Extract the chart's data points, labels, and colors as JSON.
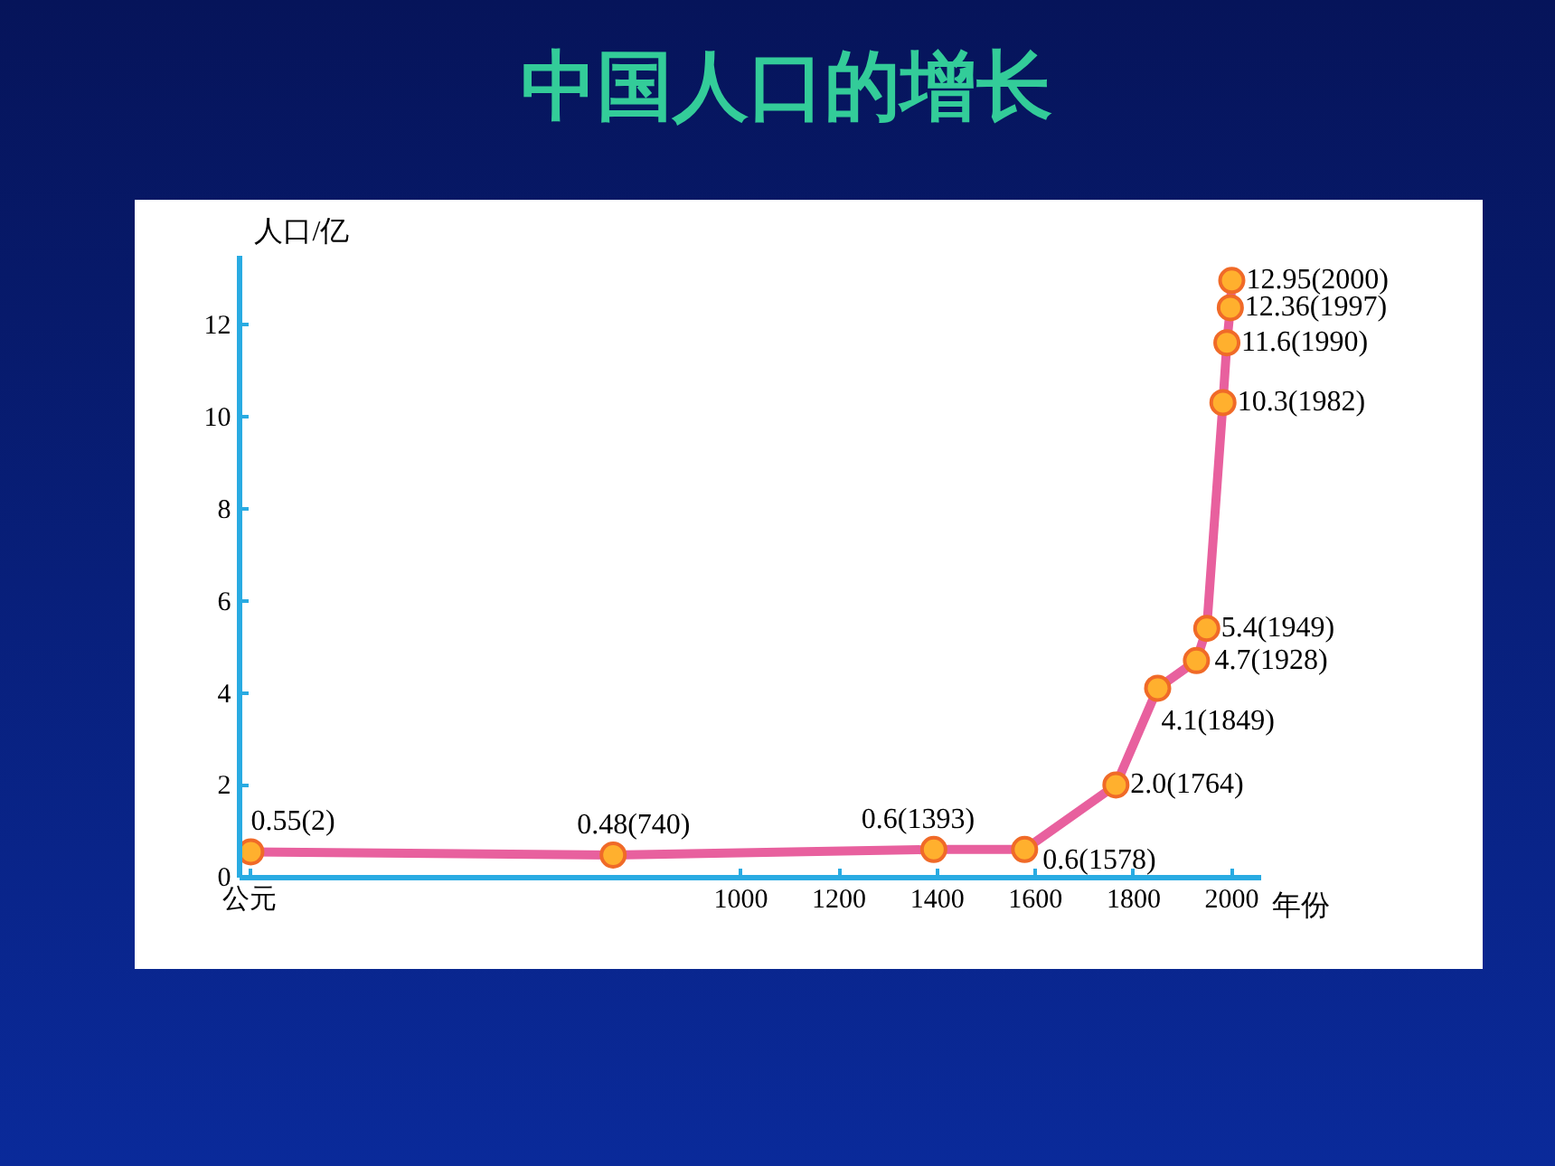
{
  "chart_data": {
    "type": "line",
    "title": "中国人口的增长",
    "xlabel": "年份",
    "ylabel": "人口/亿",
    "x": [
      2,
      740,
      1393,
      1578,
      1764,
      1849,
      1928,
      1949,
      1982,
      1990,
      1997,
      2000
    ],
    "series": [
      {
        "color": "#e8609e",
        "values": [
          0.55,
          0.48,
          0.6,
          0.6,
          2.0,
          4.1,
          4.7,
          5.4,
          10.3,
          11.6,
          12.36,
          12.95
        ],
        "value_labels": [
          "0.55(2)",
          "0.48(740)",
          "0.6(1393)",
          "0.6(1578)",
          "2.0(1764)",
          "4.1(1849)",
          "4.7(1928)",
          "5.4(1949)",
          "10.3(1982)",
          "11.6(1990)",
          "12.36(1997)",
          "12.95(2000)"
        ]
      }
    ],
    "xlim": [
      -20,
      2060
    ],
    "ylim": [
      0,
      13.5
    ],
    "xticks": [
      {
        "value": 0,
        "label": "公元"
      },
      1000,
      1200,
      1400,
      1600,
      1800,
      2000
    ],
    "yticks": [
      0,
      2,
      4,
      6,
      8,
      10,
      12
    ],
    "marker": "circle",
    "line_style": "solid",
    "grid": false
  }
}
